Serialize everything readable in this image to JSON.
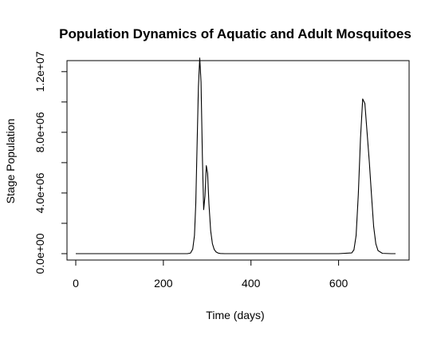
{
  "chart_data": {
    "type": "line",
    "title": "Population Dynamics of Aquatic and Adult Mosquitoes",
    "xlabel": "Time (days)",
    "ylabel": "Stage Population",
    "xlim": [
      0,
      730
    ],
    "ylim": [
      0,
      13000000
    ],
    "x_ticks": [
      0,
      200,
      400,
      600
    ],
    "x_tick_labels": [
      "0",
      "200",
      "400",
      "600"
    ],
    "y_ticks": [
      0,
      2000000,
      4000000,
      6000000,
      8000000,
      10000000,
      12000000
    ],
    "y_tick_labels": [
      "0.0e+00",
      "",
      "4.0e+06",
      "",
      "8.0e+06",
      "",
      "1.2e+07"
    ],
    "legend": "none",
    "grid": false,
    "series": [
      {
        "color": "#000000",
        "x": [
          0,
          100,
          200,
          255,
          262,
          267,
          271,
          274,
          277,
          280,
          283,
          286,
          289,
          292,
          295,
          298,
          301,
          304,
          308,
          312,
          316,
          320,
          325,
          330,
          340,
          360,
          400,
          500,
          600,
          630,
          635,
          640,
          645,
          650,
          655,
          660,
          665,
          670,
          675,
          680,
          685,
          690,
          700,
          720,
          730
        ],
        "y": [
          0,
          0,
          0,
          0,
          40000,
          300000,
          1200000,
          3300000,
          7200000,
          11000000,
          12900000,
          11300000,
          6500000,
          2900000,
          3800000,
          5800000,
          5300000,
          3300000,
          1500000,
          650000,
          280000,
          120000,
          40000,
          10000,
          0,
          0,
          0,
          0,
          0,
          50000,
          250000,
          1200000,
          3900000,
          7600000,
          10200000,
          9900000,
          8000000,
          6100000,
          3900000,
          1800000,
          650000,
          200000,
          20000,
          0,
          0
        ]
      }
    ]
  }
}
